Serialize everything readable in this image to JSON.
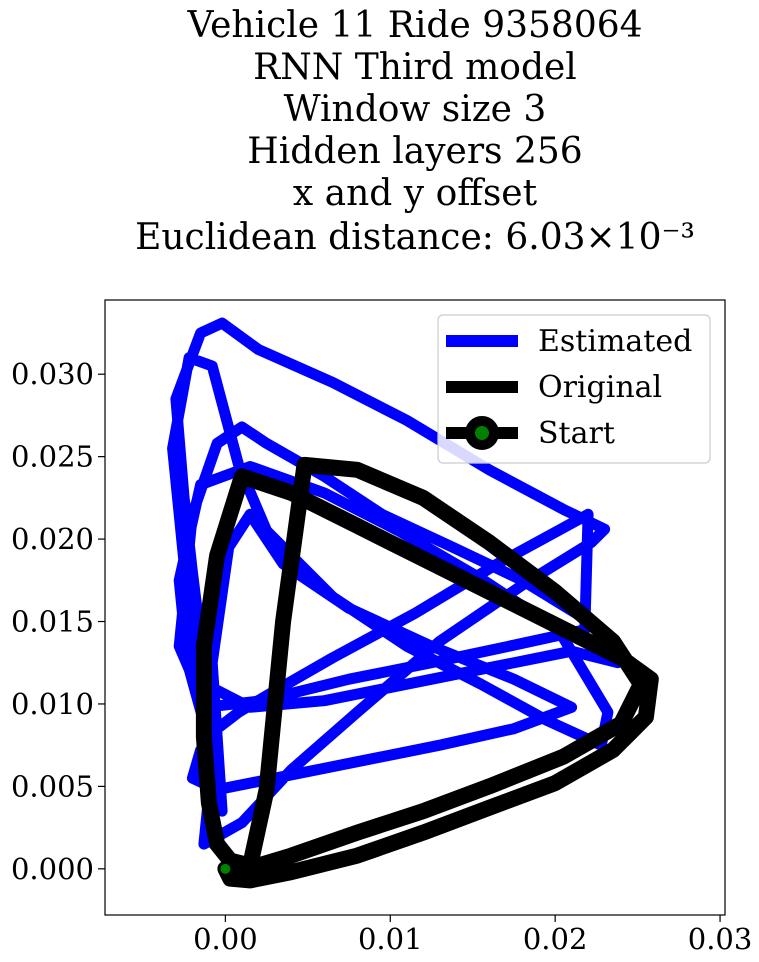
{
  "chart_data": {
    "type": "line",
    "title_lines": [
      "Vehicle 11 Ride 9358064",
      "RNN Third model",
      "Window size 3",
      "Hidden layers 256",
      "x and y offset",
      "Euclidean distance: 6.03×10⁻³"
    ],
    "xlabel": "",
    "ylabel": "",
    "xlim": [
      -0.0073,
      0.0303
    ],
    "ylim": [
      -0.0028,
      0.0345
    ],
    "xticks": [
      0.0,
      0.01,
      0.02,
      0.03
    ],
    "xtick_labels": [
      "0.00",
      "0.01",
      "0.02",
      "0.03"
    ],
    "yticks": [
      0.0,
      0.005,
      0.01,
      0.015,
      0.02,
      0.025,
      0.03
    ],
    "ytick_labels": [
      "0.000",
      "0.005",
      "0.010",
      "0.015",
      "0.020",
      "0.025",
      "0.030"
    ],
    "grid": false,
    "legend_position": "upper right",
    "series": [
      {
        "name": "Estimated",
        "color": "#0000ff",
        "x": [
          -0.0007,
          -0.0007,
          -0.001,
          -0.0015,
          -0.002,
          -0.0025,
          -0.003,
          -0.0015,
          -0.0002,
          0.002,
          0.0065,
          0.011,
          0.016,
          0.0205,
          0.023,
          0.0222,
          0.018,
          0.013,
          0.008,
          0.004,
          0.001,
          -0.0013,
          -0.001,
          -0.0012,
          -0.0023,
          -0.0028,
          -0.0015,
          0.0015,
          0.006,
          0.0105,
          0.0155,
          0.0202,
          0.0232,
          0.0228,
          0.0195,
          0.0155,
          0.011,
          0.0065,
          0.0025,
          0.0008,
          -0.0008,
          -0.0022,
          -0.0032,
          -0.0018,
          0.0015,
          0.006,
          0.011,
          0.016,
          0.021,
          0.0238,
          0.0224,
          0.018,
          0.0138,
          0.0095,
          0.006,
          0.0025,
          0.001,
          -0.0005,
          -0.002,
          -0.0028,
          -0.0012,
          0.0022,
          0.0075,
          0.0125,
          0.0172,
          0.0218,
          0.022,
          0.0165,
          0.0115,
          0.0065,
          0.0025,
          0.0008,
          -0.0005,
          -0.0015,
          -0.002,
          -0.0005,
          0.003,
          0.008,
          0.013,
          0.0175,
          0.021,
          0.0175,
          0.0125,
          0.0075,
          0.0035,
          0.0015,
          0.0002,
          -0.0008,
          -0.0002
        ],
        "y": [
          0.0015,
          0.005,
          0.0095,
          0.014,
          0.018,
          0.0225,
          0.0285,
          0.0325,
          0.0331,
          0.0315,
          0.0295,
          0.0272,
          0.0242,
          0.0218,
          0.0206,
          0.0198,
          0.0172,
          0.0138,
          0.0095,
          0.006,
          0.0028,
          0.0015,
          0.0045,
          0.0085,
          0.0125,
          0.0175,
          0.0233,
          0.0244,
          0.0228,
          0.0205,
          0.0176,
          0.0145,
          0.0095,
          0.0075,
          0.009,
          0.0112,
          0.0135,
          0.0165,
          0.0205,
          0.0245,
          0.0305,
          0.031,
          0.0255,
          0.0115,
          0.0098,
          0.0102,
          0.0112,
          0.0122,
          0.0132,
          0.0125,
          0.0148,
          0.0175,
          0.0195,
          0.0215,
          0.0238,
          0.0258,
          0.0268,
          0.0258,
          0.0215,
          0.0135,
          0.0098,
          0.0102,
          0.0115,
          0.0125,
          0.0135,
          0.0145,
          0.0215,
          0.0185,
          0.0155,
          0.0128,
          0.0105,
          0.0095,
          0.0085,
          0.0072,
          0.0055,
          0.0048,
          0.0055,
          0.0065,
          0.0075,
          0.0085,
          0.0098,
          0.0115,
          0.0135,
          0.0158,
          0.0185,
          0.0215,
          0.0195,
          0.0125,
          0.0035
        ]
      },
      {
        "name": "Original",
        "color": "#000000",
        "x": [
          0.0,
          0.0003,
          0.0015,
          0.004,
          0.008,
          0.012,
          0.016,
          0.02,
          0.0235,
          0.0255,
          0.0258,
          0.024,
          0.02,
          0.016,
          0.012,
          0.008,
          0.004,
          0.001,
          -0.0005,
          -0.0013,
          -0.0013,
          -0.001,
          -0.0005,
          0.0003,
          0.0015,
          0.0025,
          0.0035,
          0.0048,
          0.008,
          0.012,
          0.016,
          0.02,
          0.0235,
          0.0252,
          0.024,
          0.0205,
          0.016,
          0.012,
          0.008,
          0.004,
          0.002,
          0.0005,
          0.0
        ],
        "y": [
          0.0,
          -0.0006,
          -0.0007,
          -0.0002,
          0.0008,
          0.0022,
          0.0037,
          0.0052,
          0.0072,
          0.0092,
          0.0115,
          0.0128,
          0.0148,
          0.0168,
          0.0188,
          0.0208,
          0.0228,
          0.0238,
          0.019,
          0.0135,
          0.008,
          0.004,
          0.0015,
          0.0005,
          0.0002,
          0.0048,
          0.015,
          0.0245,
          0.0242,
          0.0225,
          0.0198,
          0.0168,
          0.0138,
          0.0112,
          0.0088,
          0.0068,
          0.005,
          0.0035,
          0.0022,
          0.0008,
          0.0002,
          0.0,
          0.0
        ]
      },
      {
        "name": "Start",
        "color": "#008000",
        "x": [
          0.0
        ],
        "y": [
          0.0
        ]
      }
    ]
  }
}
